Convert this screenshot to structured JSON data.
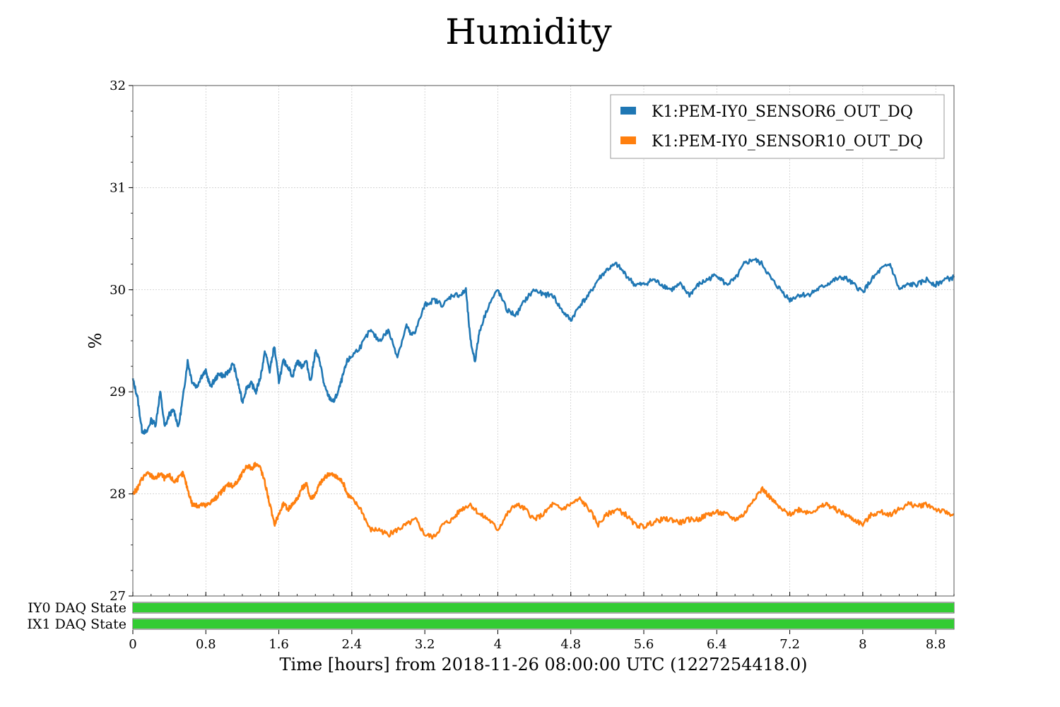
{
  "chart_data": {
    "type": "line",
    "title": "Humidity",
    "xlabel": "Time [hours] from 2018-11-26 08:00:00 UTC (1227254418.0)",
    "ylabel": "%",
    "xlim": [
      0,
      9.0
    ],
    "ylim": [
      27,
      32
    ],
    "x_ticks": [
      0,
      0.8,
      1.6,
      2.4,
      3.2,
      4,
      4.8,
      5.6,
      6.4,
      7.2,
      8,
      8.8
    ],
    "x_tick_labels": [
      "0",
      "0.8",
      "1.6",
      "2.4",
      "3.2",
      "4",
      "4.8",
      "5.6",
      "6.4",
      "7.2",
      "8",
      "8.8"
    ],
    "y_ticks": [
      27,
      28,
      29,
      30,
      31,
      32
    ],
    "y_tick_labels": [
      "27",
      "28",
      "29",
      "30",
      "31",
      "32"
    ],
    "grid": true,
    "legend_position": "top-right",
    "series": [
      {
        "name": "K1:PEM-IY0_SENSOR6_OUT_DQ",
        "color": "#1f77b4",
        "x": [
          0,
          0.05,
          0.1,
          0.15,
          0.2,
          0.25,
          0.3,
          0.35,
          0.4,
          0.45,
          0.5,
          0.55,
          0.6,
          0.65,
          0.7,
          0.75,
          0.8,
          0.85,
          0.9,
          0.95,
          1.0,
          1.05,
          1.1,
          1.15,
          1.2,
          1.25,
          1.3,
          1.35,
          1.4,
          1.45,
          1.5,
          1.55,
          1.6,
          1.65,
          1.7,
          1.75,
          1.8,
          1.85,
          1.9,
          1.95,
          2.0,
          2.05,
          2.1,
          2.15,
          2.2,
          2.25,
          2.3,
          2.35,
          2.4,
          2.5,
          2.6,
          2.7,
          2.8,
          2.9,
          3.0,
          3.05,
          3.1,
          3.2,
          3.3,
          3.4,
          3.5,
          3.6,
          3.65,
          3.7,
          3.75,
          3.8,
          3.9,
          4.0,
          4.1,
          4.2,
          4.3,
          4.4,
          4.5,
          4.6,
          4.7,
          4.8,
          4.9,
          5.0,
          5.1,
          5.2,
          5.3,
          5.4,
          5.5,
          5.6,
          5.7,
          5.8,
          5.9,
          6.0,
          6.1,
          6.2,
          6.3,
          6.4,
          6.5,
          6.6,
          6.7,
          6.8,
          6.9,
          7.0,
          7.1,
          7.2,
          7.3,
          7.4,
          7.5,
          7.6,
          7.7,
          7.8,
          7.9,
          8.0,
          8.1,
          8.2,
          8.3,
          8.4,
          8.5,
          8.6,
          8.7,
          8.8,
          8.9,
          9.0
        ],
        "values": [
          29.12,
          28.95,
          28.62,
          28.6,
          28.72,
          28.68,
          29.0,
          28.65,
          28.78,
          28.82,
          28.65,
          28.95,
          29.3,
          29.1,
          29.05,
          29.15,
          29.2,
          29.05,
          29.12,
          29.18,
          29.15,
          29.2,
          29.28,
          29.1,
          28.9,
          29.05,
          29.08,
          29.0,
          29.15,
          29.4,
          29.2,
          29.45,
          29.1,
          29.3,
          29.25,
          29.15,
          29.3,
          29.25,
          29.3,
          29.1,
          29.4,
          29.3,
          29.05,
          28.95,
          28.9,
          29.0,
          29.15,
          29.3,
          29.35,
          29.45,
          29.6,
          29.5,
          29.6,
          29.35,
          29.65,
          29.55,
          29.6,
          29.85,
          29.9,
          29.85,
          29.95,
          29.95,
          30.0,
          29.5,
          29.3,
          29.6,
          29.85,
          30.0,
          29.8,
          29.75,
          29.9,
          30.0,
          29.95,
          29.95,
          29.8,
          29.7,
          29.85,
          29.95,
          30.1,
          30.2,
          30.25,
          30.15,
          30.05,
          30.05,
          30.1,
          30.05,
          30.0,
          30.05,
          29.95,
          30.05,
          30.1,
          30.15,
          30.05,
          30.1,
          30.25,
          30.3,
          30.25,
          30.1,
          30.0,
          29.9,
          29.95,
          29.95,
          30.0,
          30.05,
          30.1,
          30.12,
          30.05,
          29.98,
          30.1,
          30.2,
          30.25,
          30.0,
          30.05,
          30.05,
          30.1,
          30.05,
          30.1,
          30.12
        ]
      },
      {
        "name": "K1:PEM-IY0_SENSOR10_OUT_DQ",
        "color": "#ff7f0e",
        "x": [
          0,
          0.05,
          0.1,
          0.15,
          0.2,
          0.25,
          0.3,
          0.35,
          0.4,
          0.45,
          0.5,
          0.55,
          0.6,
          0.65,
          0.7,
          0.75,
          0.8,
          0.85,
          0.9,
          0.95,
          1.0,
          1.05,
          1.1,
          1.15,
          1.2,
          1.25,
          1.3,
          1.35,
          1.4,
          1.45,
          1.5,
          1.55,
          1.6,
          1.65,
          1.7,
          1.75,
          1.8,
          1.85,
          1.9,
          1.95,
          2.0,
          2.05,
          2.1,
          2.15,
          2.2,
          2.25,
          2.3,
          2.35,
          2.4,
          2.5,
          2.6,
          2.7,
          2.8,
          2.9,
          3.0,
          3.1,
          3.2,
          3.3,
          3.4,
          3.5,
          3.6,
          3.7,
          3.8,
          3.9,
          4.0,
          4.1,
          4.2,
          4.3,
          4.4,
          4.5,
          4.6,
          4.7,
          4.8,
          4.9,
          5.0,
          5.1,
          5.2,
          5.3,
          5.4,
          5.5,
          5.6,
          5.7,
          5.8,
          5.9,
          6.0,
          6.1,
          6.2,
          6.3,
          6.4,
          6.5,
          6.6,
          6.7,
          6.8,
          6.9,
          7.0,
          7.1,
          7.2,
          7.3,
          7.4,
          7.5,
          7.6,
          7.7,
          7.8,
          7.9,
          8.0,
          8.1,
          8.2,
          8.3,
          8.4,
          8.5,
          8.6,
          8.7,
          8.8,
          8.9,
          9.0
        ],
        "values": [
          28.0,
          28.05,
          28.15,
          28.2,
          28.18,
          28.15,
          28.2,
          28.15,
          28.18,
          28.12,
          28.15,
          28.2,
          28.05,
          27.9,
          27.88,
          27.9,
          27.88,
          27.92,
          27.95,
          28.0,
          28.05,
          28.1,
          28.08,
          28.12,
          28.2,
          28.28,
          28.25,
          28.3,
          28.25,
          28.1,
          27.9,
          27.7,
          27.8,
          27.9,
          27.85,
          27.9,
          27.95,
          28.05,
          28.1,
          27.95,
          28.0,
          28.1,
          28.15,
          28.2,
          28.18,
          28.15,
          28.12,
          28.0,
          27.95,
          27.85,
          27.65,
          27.65,
          27.6,
          27.65,
          27.7,
          27.75,
          27.6,
          27.58,
          27.7,
          27.75,
          27.85,
          27.9,
          27.8,
          27.75,
          27.65,
          27.8,
          27.9,
          27.85,
          27.75,
          27.8,
          27.9,
          27.85,
          27.9,
          27.95,
          27.85,
          27.7,
          27.8,
          27.85,
          27.8,
          27.7,
          27.68,
          27.72,
          27.75,
          27.75,
          27.72,
          27.75,
          27.75,
          27.8,
          27.82,
          27.8,
          27.75,
          27.8,
          27.95,
          28.05,
          27.95,
          27.85,
          27.8,
          27.85,
          27.82,
          27.85,
          27.9,
          27.85,
          27.8,
          27.75,
          27.7,
          27.8,
          27.82,
          27.8,
          27.85,
          27.9,
          27.88,
          27.9,
          27.85,
          27.82,
          27.8
        ],
        "noise_seed": 7
      }
    ],
    "state_bars": [
      {
        "label": "IY0 DAQ State",
        "color": "#33cc33",
        "x_start": 0,
        "x_end": 9.0
      },
      {
        "label": "IX1 DAQ State",
        "color": "#33cc33",
        "x_start": 0,
        "x_end": 9.0
      }
    ]
  }
}
